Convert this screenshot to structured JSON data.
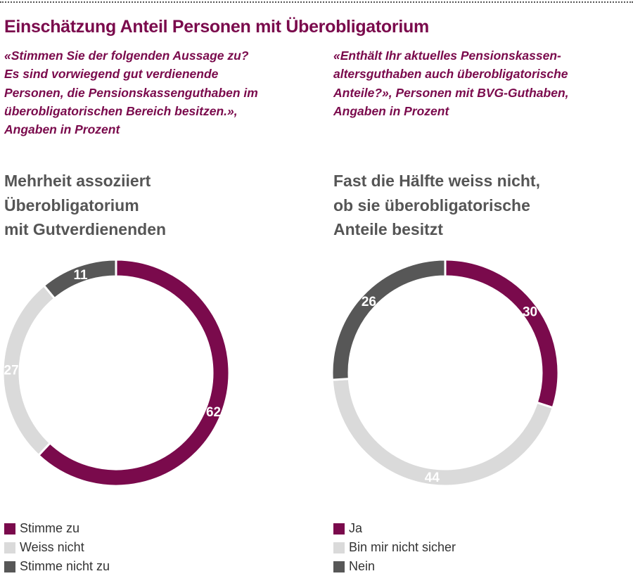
{
  "title": "Einschätzung Anteil Personen mit Überobligatorium",
  "chart_data": [
    {
      "type": "pie",
      "donut": true,
      "question": "«Stimmen Sie der folgenden Aussage zu?\nEs sind vorwiegend gut verdienende\nPersonen, die Pensionskassenguthaben im\nüberobligatorischen Bereich besitzen.»,\nAngaben in Prozent",
      "title": "Mehrheit assoziiert\nÜberobligatorium\nmit Gutverdienenden",
      "categories": [
        "Stimme zu",
        "Weiss nicht",
        "Stimme nicht zu"
      ],
      "values": [
        62,
        27,
        11
      ],
      "colors": [
        "#7a0a4c",
        "#dadada",
        "#575757"
      ],
      "legend": "bottom"
    },
    {
      "type": "pie",
      "donut": true,
      "question": "«Enthält Ihr aktuelles Pensionskassen-\naltersguthaben auch überobligatorische\nAnteile?», Personen mit BVG-Guthaben,\nAngaben in Prozent",
      "title": "Fast die Hälfte weiss nicht,\nob sie überobligatorische\nAnteile besitzt",
      "categories": [
        "Ja",
        "Bin mir nicht sicher",
        "Nein"
      ],
      "values": [
        30,
        44,
        26
      ],
      "colors": [
        "#7a0a4c",
        "#dadada",
        "#575757"
      ],
      "legend": "bottom"
    }
  ]
}
